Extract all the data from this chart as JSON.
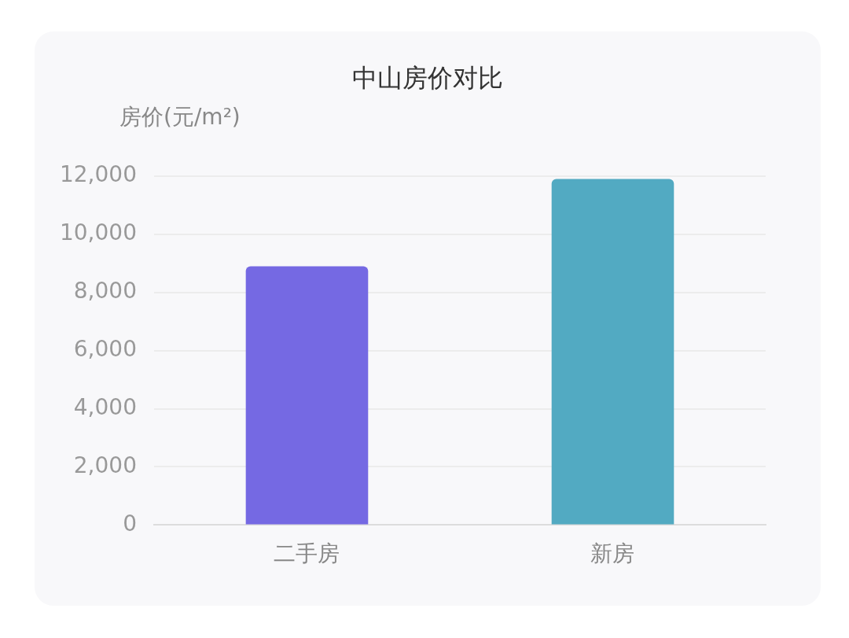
{
  "chart_data": {
    "type": "bar",
    "title": "中山房价对比",
    "ylabel": "房价(元/m²)",
    "categories": [
      "二手房",
      "新房"
    ],
    "values": [
      8900,
      11900
    ],
    "colors": [
      "#7569e3",
      "#52aac2"
    ],
    "ylim": [
      0,
      12000
    ],
    "yticks": [
      {
        "value": 0,
        "label": "0"
      },
      {
        "value": 2000,
        "label": "2,000"
      },
      {
        "value": 4000,
        "label": "4,000"
      },
      {
        "value": 6000,
        "label": "6,000"
      },
      {
        "value": 8000,
        "label": "8,000"
      },
      {
        "value": 10000,
        "label": "10,000"
      },
      {
        "value": 12000,
        "label": "12,000"
      }
    ],
    "grid": "y",
    "legend": false
  }
}
